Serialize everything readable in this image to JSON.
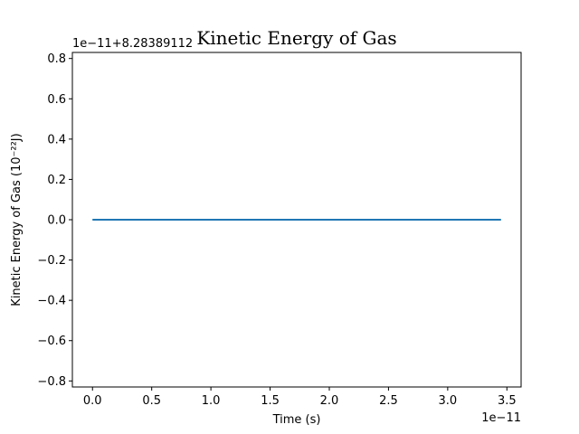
{
  "chart_data": {
    "type": "line",
    "title": "Kinetic Energy of Gas",
    "xlabel": "Time (s)",
    "ylabel": "Kinetic Energy of Gas (10$^{-2}$$^{2}$J)",
    "ylabel_display": "Kinetic Energy of Gas (10⁻²²J)",
    "x_offset_text": "1e−11",
    "y_offset_text": "1e−11+8.28389112",
    "xlim": [
      -0.17,
      3.62
    ],
    "ylim": [
      -0.83,
      0.83
    ],
    "x_ticks": [
      0.0,
      0.5,
      1.0,
      1.5,
      2.0,
      2.5,
      3.0,
      3.5
    ],
    "x_tick_labels": [
      "0.0",
      "0.5",
      "1.0",
      "1.5",
      "2.0",
      "2.5",
      "3.0",
      "3.5"
    ],
    "y_ticks": [
      -0.8,
      -0.6,
      -0.4,
      -0.2,
      0.0,
      0.2,
      0.4,
      0.6,
      0.8
    ],
    "y_tick_labels": [
      "−0.8",
      "−0.6",
      "−0.4",
      "−0.2",
      "0.0",
      "0.2",
      "0.4",
      "0.6",
      "0.8"
    ],
    "grid": false,
    "series": [
      {
        "color": "#1f77b4",
        "x": [
          0.0,
          0.5,
          1.0,
          1.5,
          2.0,
          2.5,
          3.0,
          3.45
        ],
        "y": [
          0.0,
          0.0,
          0.0,
          0.0,
          0.0,
          0.0,
          0.0,
          0.0
        ]
      }
    ]
  }
}
